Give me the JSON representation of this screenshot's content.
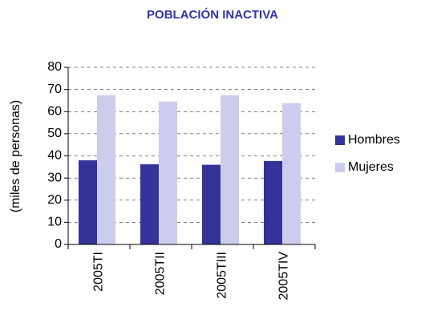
{
  "chart_data": {
    "type": "bar",
    "title": "POBLACIÓN INACTIVA",
    "y_label": "(miles de personas)",
    "categories": [
      "2005TI",
      "2005TII",
      "2005TIII",
      "2005TIV"
    ],
    "series": [
      {
        "name": "Hombres",
        "color": "#333399",
        "values": [
          38,
          36.2,
          36,
          37.7
        ]
      },
      {
        "name": "Mujeres",
        "color": "#ccccee",
        "values": [
          67.4,
          64.5,
          67.4,
          63.8
        ]
      }
    ],
    "ylim": [
      0,
      80
    ],
    "yticks": [
      0,
      10,
      20,
      30,
      40,
      50,
      60,
      70,
      80
    ],
    "grid": true,
    "legend": "right"
  }
}
